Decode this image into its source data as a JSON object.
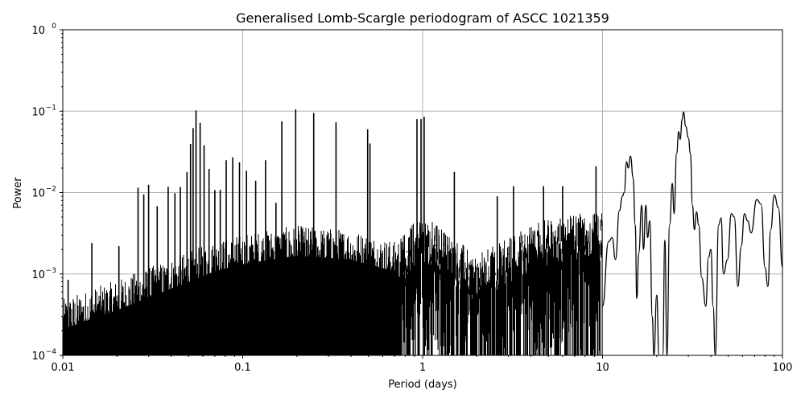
{
  "chart_data": {
    "type": "line",
    "title": "Generalised Lomb-Scargle periodogram of ASCC 1021359",
    "xlabel": "Period (days)",
    "ylabel": "Power",
    "xscale": "log",
    "yscale": "log",
    "xlim": [
      0.01,
      100
    ],
    "ylim": [
      0.0001,
      1
    ],
    "grid": true,
    "line_color": "#000000",
    "grid_color": "#b0b0b0",
    "x_ticks": [
      {
        "value": 0.01,
        "label": "0.01"
      },
      {
        "value": 0.1,
        "label": "0.1"
      },
      {
        "value": 1,
        "label": "1"
      },
      {
        "value": 10,
        "label": "10"
      },
      {
        "value": 100,
        "label": "100"
      }
    ],
    "y_ticks": [
      {
        "value": 0.0001,
        "base": "10",
        "exp": "−4"
      },
      {
        "value": 0.001,
        "base": "10",
        "exp": "−3"
      },
      {
        "value": 0.01,
        "base": "10",
        "exp": "−2"
      },
      {
        "value": 0.1,
        "base": "10",
        "exp": "−1"
      },
      {
        "value": 1,
        "base": "10",
        "exp": "0"
      }
    ],
    "noise_floor_envelope": [
      {
        "period": 0.01,
        "power": 0.00035
      },
      {
        "period": 0.02,
        "power": 0.0006
      },
      {
        "period": 0.04,
        "power": 0.0011
      },
      {
        "period": 0.07,
        "power": 0.0018
      },
      {
        "period": 0.1,
        "power": 0.0022
      },
      {
        "period": 0.2,
        "power": 0.0028
      },
      {
        "period": 0.4,
        "power": 0.0025
      },
      {
        "period": 0.7,
        "power": 0.0018
      },
      {
        "period": 1.0,
        "power": 0.004
      },
      {
        "period": 2.0,
        "power": 0.0012
      },
      {
        "period": 4.0,
        "power": 0.003
      },
      {
        "period": 8.0,
        "power": 0.004
      }
    ],
    "peaks": [
      {
        "period": 0.0107,
        "power": 0.00085
      },
      {
        "period": 0.0145,
        "power": 0.0024
      },
      {
        "period": 0.0205,
        "power": 0.0022
      },
      {
        "period": 0.0262,
        "power": 0.0115
      },
      {
        "period": 0.0282,
        "power": 0.0095
      },
      {
        "period": 0.03,
        "power": 0.0125
      },
      {
        "period": 0.0335,
        "power": 0.0068
      },
      {
        "period": 0.0385,
        "power": 0.0118
      },
      {
        "period": 0.042,
        "power": 0.0098
      },
      {
        "period": 0.045,
        "power": 0.0117
      },
      {
        "period": 0.049,
        "power": 0.0178
      },
      {
        "period": 0.0513,
        "power": 0.0395
      },
      {
        "period": 0.053,
        "power": 0.062
      },
      {
        "period": 0.055,
        "power": 0.102
      },
      {
        "period": 0.058,
        "power": 0.072
      },
      {
        "period": 0.061,
        "power": 0.038
      },
      {
        "period": 0.065,
        "power": 0.0195
      },
      {
        "period": 0.07,
        "power": 0.0107
      },
      {
        "period": 0.075,
        "power": 0.0108
      },
      {
        "period": 0.081,
        "power": 0.025
      },
      {
        "period": 0.088,
        "power": 0.027
      },
      {
        "period": 0.096,
        "power": 0.0235
      },
      {
        "period": 0.105,
        "power": 0.0185
      },
      {
        "period": 0.118,
        "power": 0.014
      },
      {
        "period": 0.134,
        "power": 0.025
      },
      {
        "period": 0.153,
        "power": 0.0075
      },
      {
        "period": 0.165,
        "power": 0.075
      },
      {
        "period": 0.197,
        "power": 0.105
      },
      {
        "period": 0.248,
        "power": 0.095
      },
      {
        "period": 0.33,
        "power": 0.073
      },
      {
        "period": 0.495,
        "power": 0.06
      },
      {
        "period": 0.51,
        "power": 0.04
      },
      {
        "period": 0.93,
        "power": 0.08
      },
      {
        "period": 0.98,
        "power": 0.08
      },
      {
        "period": 1.02,
        "power": 0.085
      },
      {
        "period": 1.5,
        "power": 0.018
      },
      {
        "period": 2.6,
        "power": 0.009
      },
      {
        "period": 3.2,
        "power": 0.012
      },
      {
        "period": 4.7,
        "power": 0.012
      },
      {
        "period": 6.0,
        "power": 0.012
      },
      {
        "period": 9.2,
        "power": 0.021
      },
      {
        "period": 13.5,
        "power": 0.024
      },
      {
        "period": 14.3,
        "power": 0.028
      },
      {
        "period": 18.5,
        "power": 0.0043
      },
      {
        "period": 22.0,
        "power": 0.0026
      },
      {
        "period": 24.5,
        "power": 0.0125
      },
      {
        "period": 26.0,
        "power": 0.056
      },
      {
        "period": 28.0,
        "power": 0.098
      },
      {
        "period": 33.5,
        "power": 0.0056
      },
      {
        "period": 40.0,
        "power": 0.002
      },
      {
        "period": 45.0,
        "power": 0.0049
      },
      {
        "period": 54.0,
        "power": 0.0055
      },
      {
        "period": 61.0,
        "power": 0.0055
      },
      {
        "period": 70.0,
        "power": 0.0085
      },
      {
        "period": 89.0,
        "power": 0.0093
      },
      {
        "period": 100.0,
        "power": 0.0012
      }
    ],
    "smooth_tail": [
      [
        10.0,
        0.0004
      ],
      [
        10.8,
        0.0025
      ],
      [
        11.3,
        0.0028
      ],
      [
        11.8,
        0.0015
      ],
      [
        12.4,
        0.006
      ],
      [
        12.9,
        0.009
      ],
      [
        13.2,
        0.01
      ],
      [
        13.6,
        0.024
      ],
      [
        13.9,
        0.02
      ],
      [
        14.3,
        0.028
      ],
      [
        14.8,
        0.015
      ],
      [
        15.2,
        0.004
      ],
      [
        15.5,
        0.0005
      ],
      [
        15.9,
        0.0018
      ],
      [
        16.5,
        0.007
      ],
      [
        16.9,
        0.002
      ],
      [
        17.4,
        0.007
      ],
      [
        17.8,
        0.0028
      ],
      [
        18.3,
        0.0045
      ],
      [
        18.9,
        0.0003
      ],
      [
        19.3,
        0.0001
      ],
      [
        20.0,
        0.00055
      ],
      [
        20.6,
        0.0001
      ],
      [
        21.6,
        0.0001
      ],
      [
        22.2,
        0.0026
      ],
      [
        22.8,
        0.0001
      ],
      [
        23.6,
        0.004
      ],
      [
        24.4,
        0.013
      ],
      [
        25.0,
        0.0055
      ],
      [
        25.8,
        0.03
      ],
      [
        26.5,
        0.056
      ],
      [
        27.0,
        0.045
      ],
      [
        27.7,
        0.08
      ],
      [
        28.2,
        0.098
      ],
      [
        29.0,
        0.065
      ],
      [
        30.0,
        0.047
      ],
      [
        30.8,
        0.03
      ],
      [
        31.6,
        0.007
      ],
      [
        32.4,
        0.0035
      ],
      [
        33.3,
        0.0058
      ],
      [
        34.2,
        0.004
      ],
      [
        35.6,
        0.0009
      ],
      [
        37.5,
        0.0004
      ],
      [
        38.8,
        0.0016
      ],
      [
        40.0,
        0.002
      ],
      [
        41.2,
        0.0004
      ],
      [
        42.3,
        0.0001
      ],
      [
        44.2,
        0.004
      ],
      [
        45.6,
        0.0049
      ],
      [
        47.0,
        0.001
      ],
      [
        49.5,
        0.0015
      ],
      [
        52.0,
        0.0055
      ],
      [
        54.0,
        0.005
      ],
      [
        56.5,
        0.0007
      ],
      [
        59.0,
        0.0022
      ],
      [
        61.5,
        0.0055
      ],
      [
        64.0,
        0.0045
      ],
      [
        67.0,
        0.0032
      ],
      [
        72.0,
        0.0082
      ],
      [
        76.0,
        0.0072
      ],
      [
        80.0,
        0.0012
      ],
      [
        83.0,
        0.0007
      ],
      [
        86.0,
        0.0035
      ],
      [
        90.0,
        0.0093
      ],
      [
        95.0,
        0.0065
      ],
      [
        100.0,
        0.0012
      ]
    ]
  }
}
